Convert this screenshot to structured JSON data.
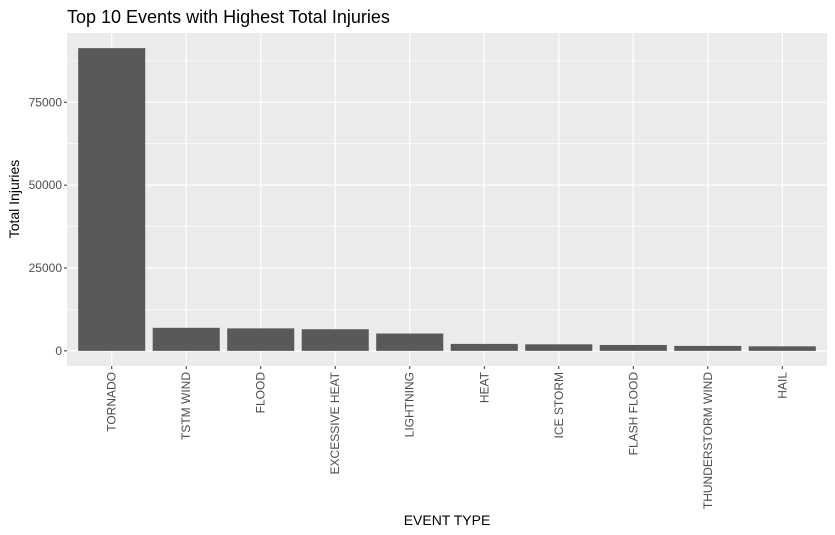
{
  "chart_data": {
    "type": "bar",
    "title": "Top 10 Events with Highest Total Injuries",
    "xlabel": "EVENT TYPE",
    "ylabel": "Total Injuries",
    "categories": [
      "TORNADO",
      "TSTM WIND",
      "FLOOD",
      "EXCESSIVE HEAT",
      "LIGHTNING",
      "HEAT",
      "ICE STORM",
      "FLASH FLOOD",
      "THUNDERSTORM WIND",
      "HAIL"
    ],
    "values": [
      91346,
      6957,
      6789,
      6525,
      5230,
      2100,
      1975,
      1777,
      1488,
      1361
    ],
    "ylim": [
      -4567,
      95913
    ],
    "yticks": [
      0,
      25000,
      50000,
      75000
    ],
    "ytick_labels": [
      "0",
      "25000",
      "50000",
      "75000"
    ],
    "grid": true,
    "legend": "none",
    "colors": {
      "bar": "#595959",
      "panel": "#ebebeb",
      "grid": "#ffffff",
      "tick_label": "#4d4d4d",
      "tick_mark": "#333333",
      "text": "#000000"
    }
  }
}
